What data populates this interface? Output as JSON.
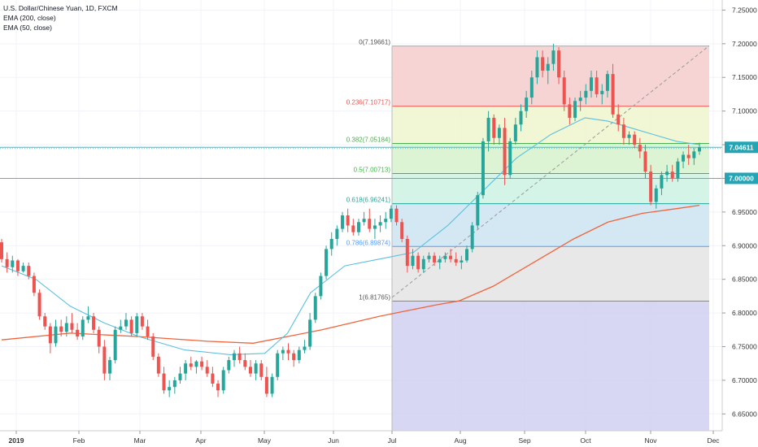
{
  "legend": {
    "symbol": "U.S. Dollar/Chinese Yuan, 1D, FXCM",
    "ema200": "EMA (200, close)",
    "ema50": "EMA (50, close)"
  },
  "colors": {
    "up": "#26a69a",
    "down": "#ef5350",
    "ema50": "#5bc0de",
    "ema200": "#f0643c",
    "badge": "#24a5b5"
  },
  "chart_data": {
    "type": "candlestick",
    "symbol": "USD/CNY",
    "timeframe": "1D",
    "ylim": [
      6.625,
      7.265
    ],
    "y_ticks": [
      "6.65000",
      "6.70000",
      "6.75000",
      "6.80000",
      "6.85000",
      "6.90000",
      "6.95000",
      "7.00000",
      "7.05000",
      "7.10000",
      "7.15000",
      "7.20000",
      "7.25000"
    ],
    "x_ticks": [
      "2019",
      "Feb",
      "Mar",
      "Apr",
      "May",
      "Jun",
      "Jul",
      "Aug",
      "Sep",
      "Oct",
      "Nov",
      "Dec"
    ],
    "price_badges": [
      {
        "label": "7.04611",
        "value": 7.04611
      },
      {
        "label": "7.00000",
        "value": 7.0
      }
    ],
    "horizontal_lines": [
      7.04611,
      7.0
    ],
    "fibonacci": {
      "start_month": "Jul",
      "levels": [
        {
          "label": "0(7.19661)",
          "value": 7.19661,
          "fill": "#f6cccc",
          "line": "#aaaaaa"
        },
        {
          "label": "0.236(7.10717)",
          "value": 7.10717,
          "fill": "#eef4cc",
          "line": "#ef5350"
        },
        {
          "label": "0.382(7.05184)",
          "value": 7.05184,
          "fill": "#d6f2cc",
          "line": "#4caf50"
        },
        {
          "label": "0.5(7.00713)",
          "value": 7.00713,
          "fill": "#cdf2e4",
          "line": "#4caf50"
        },
        {
          "label": "0.618(6.96241)",
          "value": 6.96241,
          "fill": "#cde4f2",
          "line": "#26a69a"
        },
        {
          "label": "0.786(6.89874)",
          "value": 6.89874,
          "fill": "#e4e4e4",
          "line": "#5b9cf6"
        },
        {
          "label": "1(6.81765)",
          "value": 6.81765,
          "fill": "#d0d0f2",
          "line": "#888888"
        }
      ],
      "bottom_fill": "#d0d0f2",
      "bottom_value": 6.625
    },
    "trend_line": {
      "from": [
        6.823,
        "Jul"
      ],
      "to": [
        7.197,
        "Nov end"
      ]
    },
    "ema200": [
      [
        0,
        6.76
      ],
      [
        30,
        6.77
      ],
      [
        60,
        6.765
      ],
      [
        90,
        6.758
      ],
      [
        110,
        6.755
      ],
      [
        140,
        6.775
      ],
      [
        165,
        6.795
      ],
      [
        190,
        6.812
      ],
      [
        200,
        6.818
      ],
      [
        215,
        6.84
      ],
      [
        235,
        6.88
      ],
      [
        250,
        6.91
      ],
      [
        265,
        6.935
      ],
      [
        280,
        6.948
      ],
      [
        295,
        6.955
      ],
      [
        305,
        6.96
      ]
    ],
    "ema50": [
      [
        0,
        6.87
      ],
      [
        15,
        6.85
      ],
      [
        30,
        6.81
      ],
      [
        45,
        6.785
      ],
      [
        60,
        6.765
      ],
      [
        80,
        6.745
      ],
      [
        100,
        6.738
      ],
      [
        115,
        6.74
      ],
      [
        125,
        6.77
      ],
      [
        135,
        6.83
      ],
      [
        150,
        6.87
      ],
      [
        165,
        6.88
      ],
      [
        180,
        6.89
      ],
      [
        195,
        6.93
      ],
      [
        210,
        6.98
      ],
      [
        225,
        7.03
      ],
      [
        240,
        7.065
      ],
      [
        255,
        7.09
      ],
      [
        265,
        7.085
      ],
      [
        275,
        7.075
      ],
      [
        285,
        7.065
      ],
      [
        295,
        7.055
      ],
      [
        305,
        7.05
      ]
    ],
    "candles": [
      [
        6.905,
        6.91,
        6.875,
        6.88
      ],
      [
        6.88,
        6.89,
        6.86,
        6.868
      ],
      [
        6.868,
        6.885,
        6.86,
        6.878
      ],
      [
        6.878,
        6.88,
        6.855,
        6.862
      ],
      [
        6.862,
        6.875,
        6.86,
        6.87
      ],
      [
        6.87,
        6.875,
        6.85,
        6.855
      ],
      [
        6.855,
        6.86,
        6.825,
        6.83
      ],
      [
        6.83,
        6.835,
        6.79,
        6.795
      ],
      [
        6.795,
        6.8,
        6.775,
        6.78
      ],
      [
        6.78,
        6.785,
        6.74,
        6.755
      ],
      [
        6.755,
        6.79,
        6.75,
        6.78
      ],
      [
        6.78,
        6.79,
        6.765,
        6.772
      ],
      [
        6.772,
        6.795,
        6.765,
        6.785
      ],
      [
        6.785,
        6.8,
        6.77,
        6.775
      ],
      [
        6.775,
        6.785,
        6.76,
        6.765
      ],
      [
        6.765,
        6.795,
        6.76,
        6.79
      ],
      [
        6.79,
        6.81,
        6.785,
        6.795
      ],
      [
        6.795,
        6.8,
        6.77,
        6.775
      ],
      [
        6.775,
        6.78,
        6.74,
        6.75
      ],
      [
        6.75,
        6.76,
        6.7,
        6.71
      ],
      [
        6.71,
        6.735,
        6.7,
        6.73
      ],
      [
        6.73,
        6.78,
        6.725,
        6.775
      ],
      [
        6.775,
        6.79,
        6.77,
        6.78
      ],
      [
        6.78,
        6.8,
        6.775,
        6.79
      ],
      [
        6.79,
        6.795,
        6.765,
        6.77
      ],
      [
        6.77,
        6.8,
        6.765,
        6.795
      ],
      [
        6.795,
        6.8,
        6.775,
        6.78
      ],
      [
        6.78,
        6.79,
        6.76,
        6.765
      ],
      [
        6.765,
        6.77,
        6.73,
        6.735
      ],
      [
        6.735,
        6.74,
        6.705,
        6.71
      ],
      [
        6.71,
        6.72,
        6.68,
        6.685
      ],
      [
        6.685,
        6.7,
        6.675,
        6.69
      ],
      [
        6.69,
        6.705,
        6.68,
        6.7
      ],
      [
        6.7,
        6.72,
        6.695,
        6.71
      ],
      [
        6.71,
        6.73,
        6.7,
        6.725
      ],
      [
        6.725,
        6.735,
        6.715,
        6.72
      ],
      [
        6.72,
        6.73,
        6.71,
        6.728
      ],
      [
        6.728,
        6.735,
        6.715,
        6.72
      ],
      [
        6.72,
        6.73,
        6.705,
        6.71
      ],
      [
        6.71,
        6.72,
        6.69,
        6.695
      ],
      [
        6.695,
        6.7,
        6.675,
        6.685
      ],
      [
        6.685,
        6.72,
        6.68,
        6.715
      ],
      [
        6.715,
        6.735,
        6.71,
        6.73
      ],
      [
        6.73,
        6.745,
        6.72,
        6.74
      ],
      [
        6.74,
        6.75,
        6.725,
        6.73
      ],
      [
        6.73,
        6.74,
        6.715,
        6.72
      ],
      [
        6.72,
        6.73,
        6.705,
        6.71
      ],
      [
        6.71,
        6.73,
        6.7,
        6.725
      ],
      [
        6.725,
        6.73,
        6.7,
        6.705
      ],
      [
        6.705,
        6.72,
        6.675,
        6.68
      ],
      [
        6.68,
        6.71,
        6.675,
        6.705
      ],
      [
        6.705,
        6.745,
        6.7,
        6.74
      ],
      [
        6.74,
        6.75,
        6.73,
        6.745
      ],
      [
        6.745,
        6.755,
        6.73,
        6.74
      ],
      [
        6.74,
        6.745,
        6.72,
        6.73
      ],
      [
        6.73,
        6.75,
        6.725,
        6.745
      ],
      [
        6.745,
        6.76,
        6.74,
        6.75
      ],
      [
        6.75,
        6.8,
        6.745,
        6.79
      ],
      [
        6.79,
        6.83,
        6.785,
        6.825
      ],
      [
        6.825,
        6.86,
        6.82,
        6.855
      ],
      [
        6.855,
        6.9,
        6.85,
        6.895
      ],
      [
        6.895,
        6.92,
        6.885,
        6.91
      ],
      [
        6.91,
        6.93,
        6.9,
        6.925
      ],
      [
        6.925,
        6.95,
        6.92,
        6.945
      ],
      [
        6.945,
        6.955,
        6.92,
        6.93
      ],
      [
        6.93,
        6.94,
        6.915,
        6.92
      ],
      [
        6.92,
        6.94,
        6.915,
        6.935
      ],
      [
        6.935,
        6.95,
        6.93,
        6.94
      ],
      [
        6.94,
        6.955,
        6.92,
        6.925
      ],
      [
        6.925,
        6.94,
        6.91,
        6.93
      ],
      [
        6.93,
        6.945,
        6.92,
        6.935
      ],
      [
        6.935,
        6.95,
        6.925,
        6.94
      ],
      [
        6.94,
        6.96,
        6.935,
        6.955
      ],
      [
        6.955,
        6.96,
        6.93,
        6.935
      ],
      [
        6.935,
        6.94,
        6.905,
        6.91
      ],
      [
        6.91,
        6.915,
        6.86,
        6.87
      ],
      [
        6.87,
        6.895,
        6.865,
        6.885
      ],
      [
        6.885,
        6.89,
        6.86,
        6.865
      ],
      [
        6.865,
        6.885,
        6.86,
        6.88
      ],
      [
        6.88,
        6.89,
        6.875,
        6.885
      ],
      [
        6.885,
        6.89,
        6.87,
        6.875
      ],
      [
        6.875,
        6.885,
        6.865,
        6.88
      ],
      [
        6.88,
        6.89,
        6.875,
        6.885
      ],
      [
        6.885,
        6.895,
        6.875,
        6.88
      ],
      [
        6.88,
        6.89,
        6.87,
        6.875
      ],
      [
        6.875,
        6.885,
        6.865,
        6.878
      ],
      [
        6.878,
        6.9,
        6.875,
        6.895
      ],
      [
        6.895,
        6.935,
        6.89,
        6.93
      ],
      [
        6.93,
        6.98,
        6.925,
        6.975
      ],
      [
        6.975,
        7.06,
        6.97,
        7.055
      ],
      [
        7.055,
        7.1,
        7.04,
        7.09
      ],
      [
        7.09,
        7.095,
        7.05,
        7.06
      ],
      [
        7.06,
        7.08,
        7.05,
        7.075
      ],
      [
        7.075,
        7.09,
        6.99,
        7.005
      ],
      [
        7.005,
        7.06,
        7.0,
        7.055
      ],
      [
        7.055,
        7.09,
        7.05,
        7.08
      ],
      [
        7.08,
        7.11,
        7.07,
        7.1
      ],
      [
        7.1,
        7.13,
        7.09,
        7.12
      ],
      [
        7.12,
        7.16,
        7.11,
        7.15
      ],
      [
        7.15,
        7.19,
        7.14,
        7.18
      ],
      [
        7.18,
        7.19,
        7.15,
        7.16
      ],
      [
        7.16,
        7.18,
        7.14,
        7.17
      ],
      [
        7.17,
        7.2,
        7.16,
        7.19
      ],
      [
        7.19,
        7.195,
        7.14,
        7.15
      ],
      [
        7.15,
        7.16,
        7.1,
        7.11
      ],
      [
        7.11,
        7.12,
        7.08,
        7.09
      ],
      [
        7.09,
        7.12,
        7.085,
        7.115
      ],
      [
        7.115,
        7.13,
        7.1,
        7.12
      ],
      [
        7.12,
        7.14,
        7.11,
        7.13
      ],
      [
        7.13,
        7.16,
        7.12,
        7.15
      ],
      [
        7.15,
        7.16,
        7.12,
        7.125
      ],
      [
        7.125,
        7.14,
        7.11,
        7.13
      ],
      [
        7.13,
        7.16,
        7.12,
        7.155
      ],
      [
        7.155,
        7.17,
        7.09,
        7.095
      ],
      [
        7.095,
        7.11,
        7.07,
        7.08
      ],
      [
        7.08,
        7.09,
        7.05,
        7.06
      ],
      [
        7.06,
        7.07,
        7.05,
        7.065
      ],
      [
        7.065,
        7.07,
        7.045,
        7.05
      ],
      [
        7.05,
        7.06,
        7.03,
        7.04
      ],
      [
        7.04,
        7.05,
        7.0,
        7.01
      ],
      [
        7.01,
        7.02,
        6.96,
        6.965
      ],
      [
        6.965,
        6.99,
        6.955,
        6.985
      ],
      [
        6.985,
        7.01,
        6.975,
        7.005
      ],
      [
        7.005,
        7.02,
        6.995,
        7.01
      ],
      [
        7.01,
        7.02,
        6.995,
        7.0
      ],
      [
        7.0,
        7.03,
        6.995,
        7.025
      ],
      [
        7.025,
        7.04,
        7.015,
        7.035
      ],
      [
        7.035,
        7.05,
        7.02,
        7.03
      ],
      [
        7.03,
        7.045,
        7.02,
        7.04
      ],
      [
        7.04,
        7.053,
        7.035,
        7.0461
      ]
    ]
  }
}
